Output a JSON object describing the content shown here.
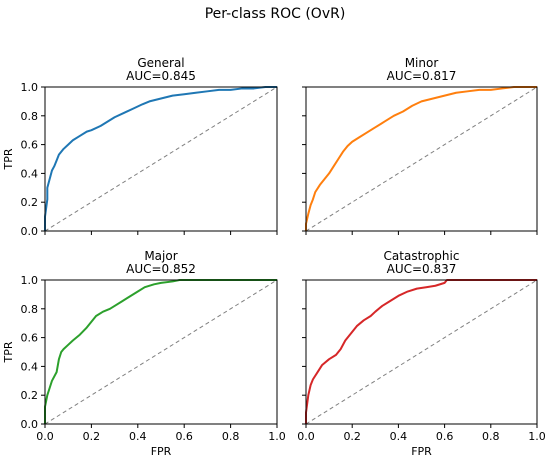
{
  "chart_data": {
    "type": "line",
    "title": "Per-class ROC (OvR)",
    "xlabel": "FPR",
    "ylabel": "TPR",
    "xlim": [
      0,
      1
    ],
    "ylim": [
      0,
      1
    ],
    "xticks": [
      "0.0",
      "0.2",
      "0.4",
      "0.6",
      "0.8",
      "1.0"
    ],
    "yticks": [
      "0.0",
      "0.2",
      "0.4",
      "0.6",
      "0.8",
      "1.0"
    ],
    "grid": false,
    "reference_line": {
      "x": [
        0,
        1
      ],
      "y": [
        0,
        1
      ],
      "style": "dashed",
      "color": "#808080"
    },
    "panels": [
      {
        "name": "General",
        "title": "General",
        "subtitle": "AUC=0.845",
        "auc": 0.845,
        "color": "#1f77b4",
        "x": [
          0.0,
          0.0,
          0.01,
          0.01,
          0.02,
          0.03,
          0.04,
          0.05,
          0.06,
          0.08,
          0.1,
          0.12,
          0.15,
          0.18,
          0.2,
          0.24,
          0.28,
          0.3,
          0.34,
          0.38,
          0.42,
          0.45,
          0.5,
          0.55,
          0.6,
          0.65,
          0.7,
          0.75,
          0.8,
          0.85,
          0.9,
          0.95,
          1.0
        ],
        "y": [
          0.0,
          0.1,
          0.22,
          0.3,
          0.36,
          0.42,
          0.45,
          0.49,
          0.53,
          0.57,
          0.6,
          0.63,
          0.66,
          0.69,
          0.7,
          0.73,
          0.77,
          0.79,
          0.82,
          0.85,
          0.88,
          0.9,
          0.92,
          0.94,
          0.95,
          0.96,
          0.97,
          0.98,
          0.98,
          0.99,
          0.99,
          1.0,
          1.0
        ]
      },
      {
        "name": "Minor",
        "title": "Minor",
        "subtitle": "AUC=0.817",
        "auc": 0.817,
        "color": "#ff7f0e",
        "x": [
          0.0,
          0.0,
          0.01,
          0.02,
          0.03,
          0.04,
          0.06,
          0.08,
          0.1,
          0.12,
          0.14,
          0.16,
          0.18,
          0.2,
          0.23,
          0.26,
          0.3,
          0.34,
          0.38,
          0.42,
          0.46,
          0.5,
          0.55,
          0.6,
          0.65,
          0.7,
          0.75,
          0.8,
          0.85,
          0.9,
          0.95,
          1.0
        ],
        "y": [
          0.0,
          0.05,
          0.12,
          0.18,
          0.22,
          0.27,
          0.32,
          0.36,
          0.4,
          0.45,
          0.5,
          0.55,
          0.59,
          0.62,
          0.65,
          0.68,
          0.72,
          0.76,
          0.8,
          0.83,
          0.87,
          0.9,
          0.92,
          0.94,
          0.96,
          0.97,
          0.98,
          0.98,
          0.99,
          1.0,
          1.0,
          1.0
        ]
      },
      {
        "name": "Major",
        "title": "Major",
        "subtitle": "AUC=0.852",
        "auc": 0.852,
        "color": "#2ca02c",
        "x": [
          0.0,
          0.0,
          0.01,
          0.02,
          0.03,
          0.05,
          0.06,
          0.07,
          0.08,
          0.1,
          0.12,
          0.15,
          0.18,
          0.2,
          0.22,
          0.25,
          0.28,
          0.3,
          0.33,
          0.36,
          0.4,
          0.43,
          0.47,
          0.5,
          0.55,
          0.58,
          0.6,
          0.65,
          0.7,
          0.8,
          0.9,
          1.0
        ],
        "y": [
          0.0,
          0.12,
          0.2,
          0.25,
          0.3,
          0.36,
          0.45,
          0.5,
          0.52,
          0.55,
          0.58,
          0.62,
          0.67,
          0.71,
          0.75,
          0.78,
          0.8,
          0.82,
          0.85,
          0.88,
          0.92,
          0.95,
          0.97,
          0.98,
          0.99,
          1.0,
          1.0,
          1.0,
          1.0,
          1.0,
          1.0,
          1.0
        ]
      },
      {
        "name": "Catastrophic",
        "title": "Catastrophic",
        "subtitle": "AUC=0.837",
        "auc": 0.837,
        "color": "#d62728",
        "x": [
          0.0,
          0.0,
          0.01,
          0.02,
          0.03,
          0.05,
          0.07,
          0.1,
          0.13,
          0.15,
          0.17,
          0.2,
          0.22,
          0.25,
          0.28,
          0.3,
          0.33,
          0.36,
          0.4,
          0.44,
          0.48,
          0.52,
          0.56,
          0.6,
          0.61,
          0.7,
          0.8,
          0.9,
          1.0
        ],
        "y": [
          0.0,
          0.08,
          0.2,
          0.27,
          0.31,
          0.36,
          0.41,
          0.45,
          0.48,
          0.52,
          0.58,
          0.64,
          0.68,
          0.72,
          0.75,
          0.78,
          0.82,
          0.85,
          0.89,
          0.92,
          0.94,
          0.95,
          0.96,
          0.98,
          1.0,
          1.0,
          1.0,
          1.0,
          1.0
        ]
      }
    ]
  }
}
